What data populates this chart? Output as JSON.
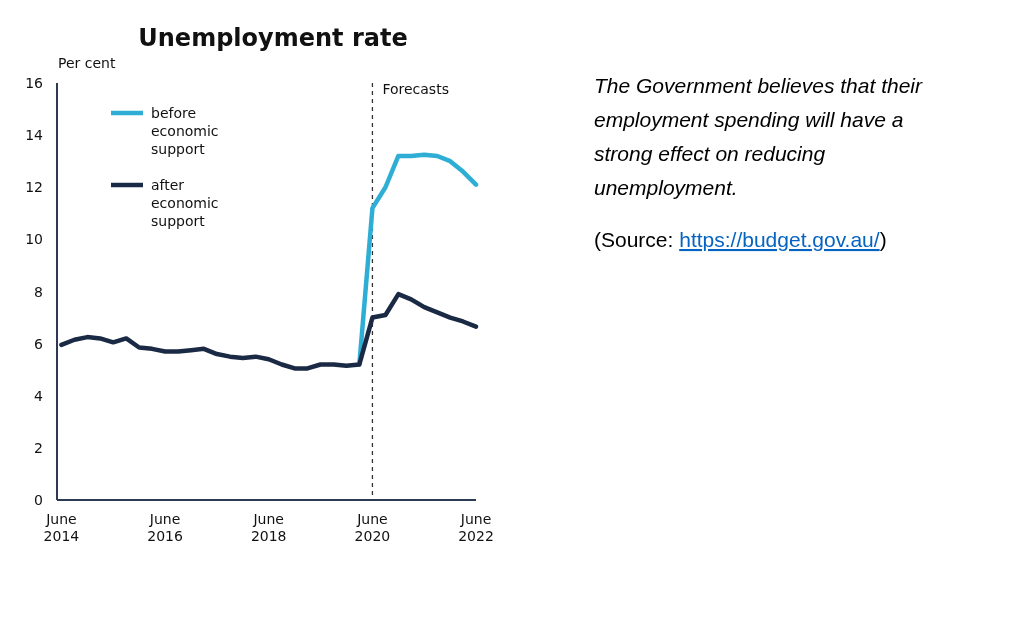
{
  "chart_data": {
    "type": "line",
    "title": "Unemployment rate",
    "ylabel": "Per cent",
    "x": [
      "2014-06",
      "2014-09",
      "2014-12",
      "2015-03",
      "2015-06",
      "2015-09",
      "2015-12",
      "2016-03",
      "2016-06",
      "2016-09",
      "2016-12",
      "2017-03",
      "2017-06",
      "2017-09",
      "2017-12",
      "2018-03",
      "2018-06",
      "2018-09",
      "2018-12",
      "2019-03",
      "2019-06",
      "2019-09",
      "2019-12",
      "2020-03",
      "2020-06",
      "2020-09",
      "2020-12",
      "2021-03",
      "2021-06",
      "2021-09",
      "2021-12",
      "2022-03",
      "2022-06"
    ],
    "series": [
      {
        "name": "before economic support",
        "color": "#2eaed4",
        "values": [
          null,
          null,
          null,
          null,
          null,
          null,
          null,
          null,
          null,
          null,
          null,
          null,
          null,
          null,
          null,
          null,
          null,
          null,
          null,
          null,
          null,
          null,
          null,
          5.2,
          11.2,
          12.0,
          13.2,
          13.2,
          13.25,
          13.2,
          13.0,
          12.6,
          12.1
        ]
      },
      {
        "name": "after economic support",
        "color": "#1b2a44",
        "values": [
          5.95,
          6.15,
          6.25,
          6.2,
          6.05,
          6.2,
          5.85,
          5.8,
          5.7,
          5.7,
          5.75,
          5.8,
          5.6,
          5.5,
          5.45,
          5.5,
          5.4,
          5.2,
          5.05,
          5.05,
          5.2,
          5.2,
          5.15,
          5.2,
          7.0,
          7.1,
          7.9,
          7.7,
          7.4,
          7.2,
          7.0,
          6.85,
          6.65
        ]
      }
    ],
    "xlim": [
      "2014-05",
      "2022-06"
    ],
    "xticks": [
      {
        "value": "2014-06",
        "label": "June 2014"
      },
      {
        "value": "2016-06",
        "label": "June 2016"
      },
      {
        "value": "2018-06",
        "label": "June 2018"
      },
      {
        "value": "2020-06",
        "label": "June 2020"
      },
      {
        "value": "2022-06",
        "label": "June 2022"
      }
    ],
    "ylim": [
      0,
      16
    ],
    "yticks": [
      0,
      2,
      4,
      6,
      8,
      10,
      12,
      14,
      16
    ],
    "ref_lines": [
      {
        "axis": "x",
        "value": "2020-06",
        "label": "Forecasts",
        "color": "#333333",
        "line_style": "dashed"
      }
    ],
    "annotations": [
      "The Government believes that their employment spending will have a strong effect on reducing unemployment.",
      "(Source: https://budget.gov.au/)"
    ],
    "legend": "top left",
    "grid": false,
    "marker": "none",
    "line_style": "solid"
  }
}
